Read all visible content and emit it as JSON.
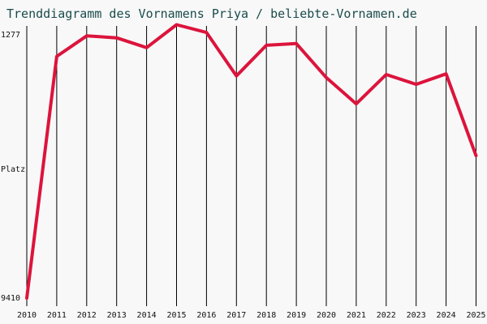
{
  "chart_data": {
    "type": "line",
    "title": "Trenddiagramm des Vornamens Priya / beliebte-Vornamen.de",
    "ylabel": "Platz",
    "y_top_label": "1277",
    "y_bottom_label": "9410",
    "ylim": [
      1277,
      9410
    ],
    "y_inverted": true,
    "grid": "vertical",
    "x": [
      "2010",
      "2011",
      "2012",
      "2013",
      "2014",
      "2015",
      "2016",
      "2017",
      "2018",
      "2019",
      "2020",
      "2021",
      "2022",
      "2023",
      "2024",
      "2025"
    ],
    "series": [
      {
        "values": [
          9410,
          2230,
          1620,
          1680,
          1970,
          1290,
          1520,
          2810,
          1900,
          1850,
          2860,
          3640,
          2770,
          3060,
          2750,
          5180
        ]
      }
    ],
    "colors": {
      "line": "#dc143c",
      "grid": "#000000",
      "title": "#1a4b4b",
      "background": "#f8f8f8"
    }
  }
}
